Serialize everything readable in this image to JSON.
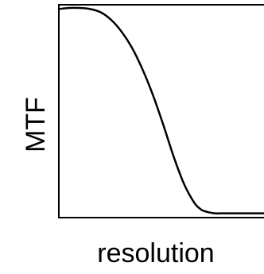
{
  "chart_data": {
    "type": "line",
    "title": "",
    "xlabel": "resolution",
    "ylabel": "MTF",
    "xlim": [
      0,
      1
    ],
    "ylim": [
      0,
      1
    ],
    "grid": false,
    "legend": "none",
    "tick_labels_shown": false,
    "series": [
      {
        "x": [
          0.0,
          0.05,
          0.1,
          0.15,
          0.2,
          0.25,
          0.3,
          0.35,
          0.4,
          0.45,
          0.5,
          0.55,
          0.6,
          0.65,
          0.68,
          0.7,
          0.72,
          0.75,
          0.78,
          0.8,
          0.82,
          0.85,
          0.88,
          0.92,
          0.96,
          1.0
        ],
        "y": [
          0.98,
          0.985,
          0.985,
          0.98,
          0.965,
          0.93,
          0.875,
          0.8,
          0.7,
          0.58,
          0.44,
          0.29,
          0.16,
          0.07,
          0.04,
          0.03,
          0.025,
          0.02,
          0.02,
          0.02,
          0.02,
          0.02,
          0.02,
          0.02,
          0.02,
          0.02
        ],
        "color": "#000000"
      }
    ]
  }
}
